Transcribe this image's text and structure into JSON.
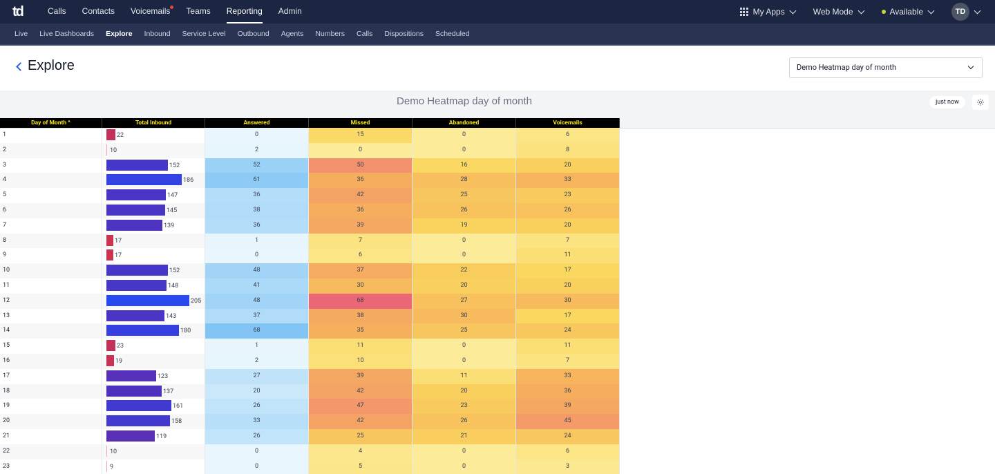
{
  "app": {
    "logo": "td",
    "nav": [
      {
        "label": "Calls"
      },
      {
        "label": "Contacts"
      },
      {
        "label": "Voicemails",
        "has_notification": true
      },
      {
        "label": "Teams"
      },
      {
        "label": "Reporting",
        "active": true
      },
      {
        "label": "Admin"
      }
    ],
    "my_apps": "My Apps",
    "mode": "Web Mode",
    "status": "Available",
    "avatar_initials": "TD"
  },
  "subnav": [
    {
      "label": "Live"
    },
    {
      "label": "Live Dashboards"
    },
    {
      "label": "Explore",
      "active": true
    },
    {
      "label": "Inbound"
    },
    {
      "label": "Service Level"
    },
    {
      "label": "Outbound"
    },
    {
      "label": "Agents"
    },
    {
      "label": "Numbers"
    },
    {
      "label": "Calls"
    },
    {
      "label": "Dispositions"
    },
    {
      "label": "Scheduled"
    }
  ],
  "page": {
    "title": "Explore",
    "selected_report": "Demo Heatmap day of month"
  },
  "report": {
    "title": "Demo Heatmap day of month",
    "refreshed": "just now"
  },
  "table": {
    "columns": [
      "Day of Month",
      "Total Inbound",
      "Answered",
      "Missed",
      "Abandoned",
      "Voicemails"
    ],
    "sort_indicator": "^",
    "rows": [
      {
        "day": 1,
        "total": 22,
        "answered": 0,
        "missed": 15,
        "abandoned": 0,
        "voicemails": 6
      },
      {
        "day": 2,
        "total": 10,
        "answered": 2,
        "missed": 0,
        "abandoned": 0,
        "voicemails": 8
      },
      {
        "day": 3,
        "total": 152,
        "answered": 52,
        "missed": 50,
        "abandoned": 16,
        "voicemails": 20
      },
      {
        "day": 4,
        "total": 186,
        "answered": 61,
        "missed": 36,
        "abandoned": 28,
        "voicemails": 33
      },
      {
        "day": 5,
        "total": 147,
        "answered": 36,
        "missed": 42,
        "abandoned": 25,
        "voicemails": 23
      },
      {
        "day": 6,
        "total": 145,
        "answered": 38,
        "missed": 36,
        "abandoned": 26,
        "voicemails": 26
      },
      {
        "day": 7,
        "total": 139,
        "answered": 36,
        "missed": 39,
        "abandoned": 19,
        "voicemails": 20
      },
      {
        "day": 8,
        "total": 17,
        "answered": 1,
        "missed": 7,
        "abandoned": 0,
        "voicemails": 7
      },
      {
        "day": 9,
        "total": 17,
        "answered": 0,
        "missed": 6,
        "abandoned": 0,
        "voicemails": 11
      },
      {
        "day": 10,
        "total": 152,
        "answered": 48,
        "missed": 37,
        "abandoned": 22,
        "voicemails": 17
      },
      {
        "day": 11,
        "total": 148,
        "answered": 41,
        "missed": 30,
        "abandoned": 20,
        "voicemails": 20
      },
      {
        "day": 12,
        "total": 205,
        "answered": 48,
        "missed": 68,
        "abandoned": 27,
        "voicemails": 30
      },
      {
        "day": 13,
        "total": 143,
        "answered": 37,
        "missed": 38,
        "abandoned": 30,
        "voicemails": 17
      },
      {
        "day": 14,
        "total": 180,
        "answered": 68,
        "missed": 35,
        "abandoned": 25,
        "voicemails": 24
      },
      {
        "day": 15,
        "total": 23,
        "answered": 1,
        "missed": 11,
        "abandoned": 0,
        "voicemails": 11
      },
      {
        "day": 16,
        "total": 19,
        "answered": 2,
        "missed": 10,
        "abandoned": 0,
        "voicemails": 7
      },
      {
        "day": 17,
        "total": 123,
        "answered": 27,
        "missed": 39,
        "abandoned": 11,
        "voicemails": 33
      },
      {
        "day": 18,
        "total": 137,
        "answered": 20,
        "missed": 42,
        "abandoned": 20,
        "voicemails": 36
      },
      {
        "day": 19,
        "total": 161,
        "answered": 26,
        "missed": 47,
        "abandoned": 23,
        "voicemails": 39
      },
      {
        "day": 20,
        "total": 158,
        "answered": 33,
        "missed": 42,
        "abandoned": 26,
        "voicemails": 45
      },
      {
        "day": 21,
        "total": 119,
        "answered": 26,
        "missed": 25,
        "abandoned": 21,
        "voicemails": 24
      },
      {
        "day": 22,
        "total": 10,
        "answered": 0,
        "missed": 4,
        "abandoned": 0,
        "voicemails": 6
      },
      {
        "day": 23,
        "total": 9,
        "answered": 0,
        "missed": 5,
        "abandoned": 0,
        "voicemails": 3
      }
    ]
  }
}
